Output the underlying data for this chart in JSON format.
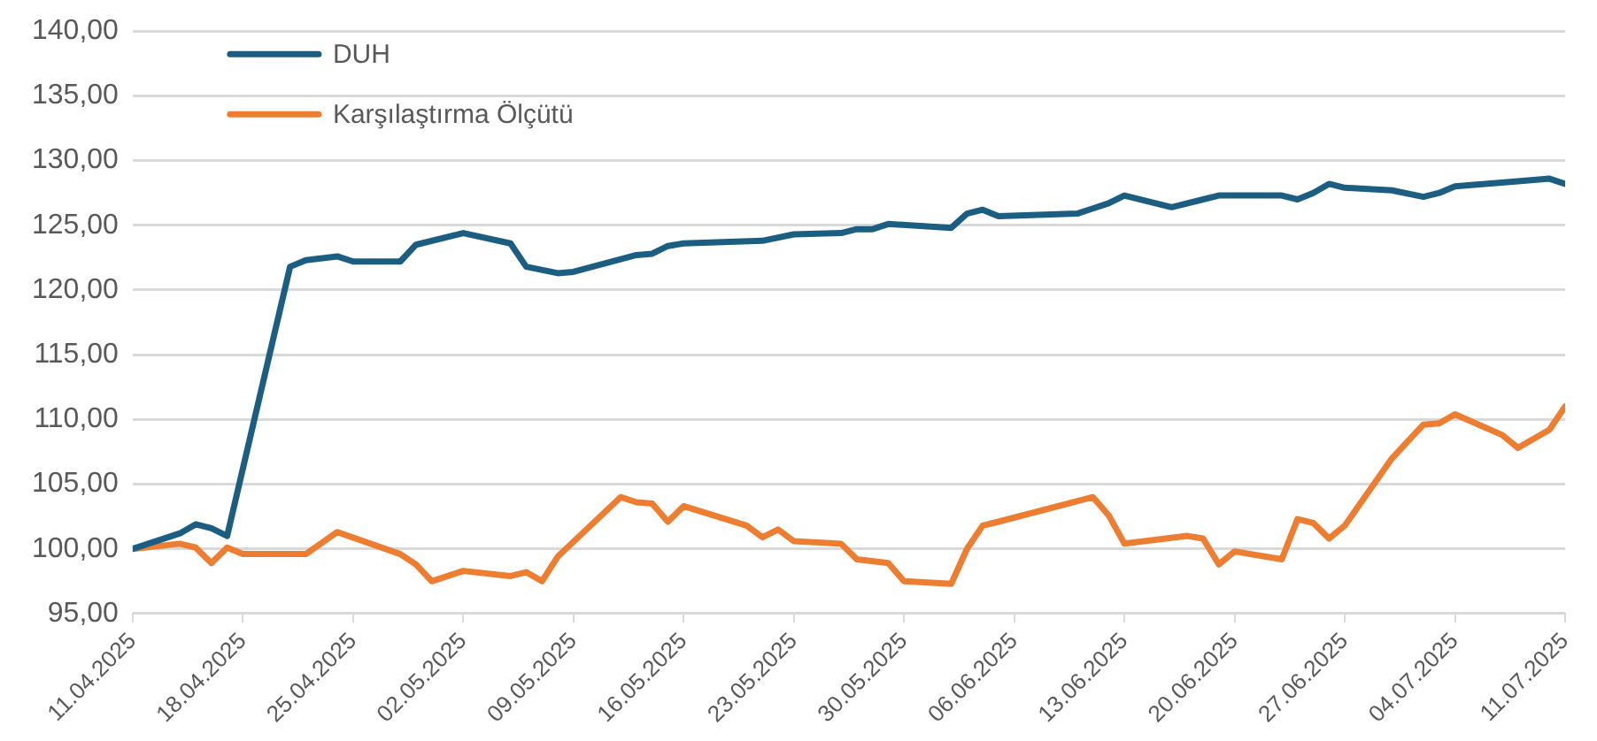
{
  "chart_data": {
    "type": "line",
    "legend": "top left",
    "grid": "y",
    "marker": "none",
    "line_style": "solid",
    "xlim": [
      "2025-04-11",
      "2025-07-11"
    ],
    "xticks": [
      {
        "value": "2025-04-11",
        "label": "11.04.2025"
      },
      {
        "value": "2025-04-18",
        "label": "18.04.2025"
      },
      {
        "value": "2025-04-25",
        "label": "25.04.2025"
      },
      {
        "value": "2025-05-02",
        "label": "02.05.2025"
      },
      {
        "value": "2025-05-09",
        "label": "09.05.2025"
      },
      {
        "value": "2025-05-16",
        "label": "16.05.2025"
      },
      {
        "value": "2025-05-23",
        "label": "23.05.2025"
      },
      {
        "value": "2025-05-30",
        "label": "30.05.2025"
      },
      {
        "value": "2025-06-06",
        "label": "06.06.2025"
      },
      {
        "value": "2025-06-13",
        "label": "13.06.2025"
      },
      {
        "value": "2025-06-20",
        "label": "20.06.2025"
      },
      {
        "value": "2025-06-27",
        "label": "27.06.2025"
      },
      {
        "value": "2025-07-04",
        "label": "04.07.2025"
      },
      {
        "value": "2025-07-11",
        "label": "11.07.2025"
      }
    ],
    "ylim": [
      95,
      140
    ],
    "yticks": [
      {
        "value": 95,
        "label": "95,00"
      },
      {
        "value": 100,
        "label": "100,00"
      },
      {
        "value": 105,
        "label": "105,00"
      },
      {
        "value": 110,
        "label": "110,00"
      },
      {
        "value": 115,
        "label": "115,00"
      },
      {
        "value": 120,
        "label": "120,00"
      },
      {
        "value": 125,
        "label": "125,00"
      },
      {
        "value": 130,
        "label": "130,00"
      },
      {
        "value": 135,
        "label": "135,00"
      },
      {
        "value": 140,
        "label": "140,00"
      }
    ],
    "series": [
      {
        "name": "DUH",
        "color": "#1b5e82",
        "x": [
          "2025-04-11",
          "2025-04-14",
          "2025-04-15",
          "2025-04-16",
          "2025-04-17",
          "2025-04-21",
          "2025-04-22",
          "2025-04-24",
          "2025-04-25",
          "2025-04-28",
          "2025-04-29",
          "2025-05-02",
          "2025-05-05",
          "2025-05-06",
          "2025-05-08",
          "2025-05-09",
          "2025-05-13",
          "2025-05-14",
          "2025-05-15",
          "2025-05-16",
          "2025-05-21",
          "2025-05-23",
          "2025-05-26",
          "2025-05-27",
          "2025-05-28",
          "2025-05-29",
          "2025-06-02",
          "2025-06-03",
          "2025-06-04",
          "2025-06-05",
          "2025-06-10",
          "2025-06-11",
          "2025-06-12",
          "2025-06-13",
          "2025-06-16",
          "2025-06-18",
          "2025-06-19",
          "2025-06-23",
          "2025-06-24",
          "2025-06-25",
          "2025-06-26",
          "2025-06-27",
          "2025-06-30",
          "2025-07-02",
          "2025-07-03",
          "2025-07-04",
          "2025-07-08",
          "2025-07-10",
          "2025-07-11"
        ],
        "values": [
          100,
          101.2,
          101.9,
          101.6,
          101,
          121.8,
          122.3,
          122.6,
          122.2,
          122.2,
          123.5,
          124.4,
          123.6,
          121.8,
          121.3,
          121.4,
          122.7,
          122.8,
          123.4,
          123.6,
          123.8,
          124.3,
          124.4,
          124.7,
          124.7,
          125.1,
          124.8,
          125.9,
          126.2,
          125.7,
          125.9,
          126.3,
          126.7,
          127.3,
          126.4,
          127,
          127.3,
          127.3,
          127,
          127.5,
          128.2,
          127.9,
          127.7,
          127.2,
          127.5,
          128,
          128.4,
          128.6,
          128.2
        ]
      },
      {
        "name": "Karşılaştırma Ölçütü",
        "color": "#ed7d31",
        "x": [
          "2025-04-11",
          "2025-04-14",
          "2025-04-15",
          "2025-04-16",
          "2025-04-17",
          "2025-04-18",
          "2025-04-22",
          "2025-04-24",
          "2025-04-28",
          "2025-04-29",
          "2025-04-30",
          "2025-05-02",
          "2025-05-05",
          "2025-05-06",
          "2025-05-07",
          "2025-05-08",
          "2025-05-12",
          "2025-05-13",
          "2025-05-14",
          "2025-05-15",
          "2025-05-16",
          "2025-05-20",
          "2025-05-21",
          "2025-05-22",
          "2025-05-23",
          "2025-05-26",
          "2025-05-27",
          "2025-05-29",
          "2025-05-30",
          "2025-06-02",
          "2025-06-03",
          "2025-06-04",
          "2025-06-05",
          "2025-06-11",
          "2025-06-12",
          "2025-06-13",
          "2025-06-17",
          "2025-06-18",
          "2025-06-19",
          "2025-06-20",
          "2025-06-23",
          "2025-06-24",
          "2025-06-25",
          "2025-06-26",
          "2025-06-27",
          "2025-06-30",
          "2025-07-01",
          "2025-07-02",
          "2025-07-03",
          "2025-07-04",
          "2025-07-07",
          "2025-07-08",
          "2025-07-10",
          "2025-07-11"
        ],
        "values": [
          100,
          100.4,
          100.1,
          98.9,
          100.1,
          99.6,
          99.6,
          101.3,
          99.6,
          98.8,
          97.5,
          98.3,
          97.9,
          98.2,
          97.5,
          99.4,
          104,
          103.6,
          103.5,
          102.1,
          103.3,
          101.8,
          100.9,
          101.5,
          100.6,
          100.4,
          99.2,
          98.9,
          97.5,
          97.3,
          100,
          101.8,
          102.1,
          104,
          102.6,
          100.4,
          101,
          100.8,
          98.8,
          99.8,
          99.2,
          102.3,
          102,
          100.8,
          101.8,
          107,
          108.3,
          109.6,
          109.7,
          110.4,
          108.8,
          107.8,
          109.2,
          111
        ]
      }
    ]
  }
}
